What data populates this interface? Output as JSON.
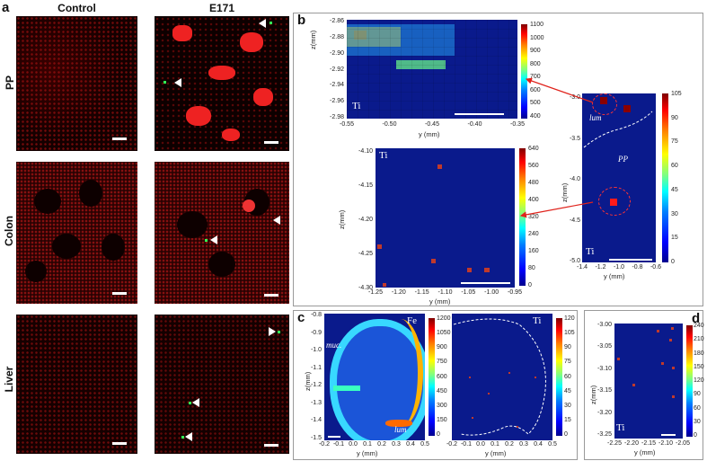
{
  "panel_a": {
    "letter": "a",
    "columns": [
      "Control",
      "E171"
    ],
    "rows": [
      "PP",
      "Colon",
      "Liver"
    ]
  },
  "panel_b": {
    "letter": "b",
    "top_map": {
      "element": "Ti",
      "ylabel": "z(mm)",
      "xlabel": "y (mm)",
      "yticks": [
        "-2.86",
        "-2.88",
        "-2.90",
        "-2.92",
        "-2.94",
        "-2.96",
        "-2.98"
      ],
      "xticks": [
        "-0.55",
        "-0.50",
        "-0.45",
        "-0.40",
        "-0.35"
      ],
      "cbar_ticks": [
        "1100",
        "1000",
        "900",
        "800",
        "700",
        "600",
        "500",
        "400"
      ]
    },
    "mid_map": {
      "element": "Ti",
      "ylabel": "z(mm)",
      "xlabel": "y (mm)",
      "yticks": [
        "-4.10",
        "-4.15",
        "-4.20",
        "-4.25",
        "-4.30"
      ],
      "xticks": [
        "-1.25",
        "-1.20",
        "-1.15",
        "-1.10",
        "-1.05",
        "-1.00",
        "-0.95"
      ],
      "cbar_ticks": [
        "640",
        "560",
        "480",
        "400",
        "320",
        "240",
        "160",
        "80",
        "0"
      ]
    },
    "overview_map": {
      "element": "Ti",
      "ylabel": "z(mm)",
      "xlabel": "y (mm)",
      "yticks": [
        "-3.0",
        "-3.5",
        "-4.0",
        "-4.5",
        "-5.0"
      ],
      "xticks": [
        "-1.4",
        "-1.2",
        "-1.0",
        "-0.8",
        "-0.6"
      ],
      "cbar_ticks": [
        "105",
        "90",
        "75",
        "60",
        "45",
        "30",
        "15",
        "0"
      ],
      "lum": "lum",
      "pp": "PP"
    }
  },
  "panel_c": {
    "letter": "c",
    "fe_map": {
      "element": "Fe",
      "ylabel": "z(mm)",
      "xlabel": "y (mm)",
      "yticks": [
        "-0.8",
        "-0.9",
        "-1.0",
        "-1.1",
        "-1.2",
        "-1.3",
        "-1.4",
        "-1.5"
      ],
      "xticks": [
        "-0.2",
        "-0.1",
        "0.0",
        "0.1",
        "0.2",
        "0.3",
        "0.4",
        "0.5"
      ],
      "cbar_ticks": [
        "1200",
        "1050",
        "900",
        "750",
        "600",
        "450",
        "300",
        "150",
        "0"
      ],
      "muc": "muc.",
      "lum": "lum"
    },
    "ti_map": {
      "element": "Ti",
      "xlabel": "y (mm)",
      "xticks": [
        "-0.2",
        "-0.1",
        "0.0",
        "0.1",
        "0.2",
        "0.3",
        "0.4",
        "0.5"
      ],
      "cbar_ticks": [
        "120",
        "105",
        "90",
        "75",
        "60",
        "45",
        "30",
        "15",
        "0"
      ]
    }
  },
  "panel_d": {
    "letter": "d",
    "element": "Ti",
    "ylabel": "z(mm)",
    "xlabel": "y (mm)",
    "yticks": [
      "-3.00",
      "-3.05",
      "-3.10",
      "-3.15",
      "-3.20",
      "-3.25"
    ],
    "xticks": [
      "-2.25",
      "-2.20",
      "-2.15",
      "-2.10",
      "-2.05"
    ],
    "cbar_ticks": [
      "240",
      "210",
      "180",
      "150",
      "120",
      "90",
      "60",
      "30",
      "0"
    ]
  },
  "colors": {
    "micro_red": "#c01010",
    "map_blue": "#0a1a8c",
    "arrow_red": "#e0231c"
  }
}
